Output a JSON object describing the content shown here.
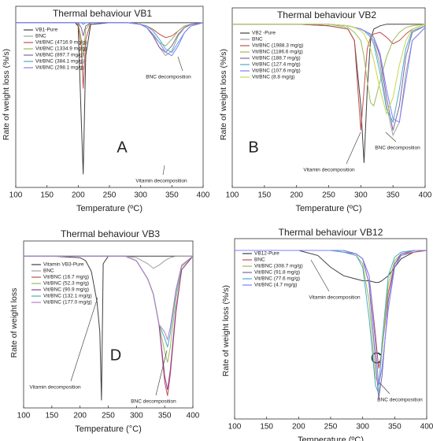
{
  "chart_data": [
    {
      "type": "line",
      "title": "Thermal behaviour VB1",
      "xlabel": "Temperature (ºC)",
      "ylabel": "Rate of weight loss (%/s)",
      "panel_label": "A",
      "xlim": [
        100,
        400
      ],
      "xticks": [
        100,
        150,
        200,
        250,
        300,
        350,
        400
      ],
      "ylim": [
        -100,
        10
      ],
      "annotations": [
        "Vitamin decomposition",
        "BNC decomposition"
      ],
      "x": [
        100,
        150,
        195,
        200,
        205,
        208,
        212,
        220,
        250,
        280,
        300,
        310,
        320,
        330,
        340,
        350,
        360,
        370,
        380,
        400
      ],
      "series": [
        {
          "name": "VB1-Pure",
          "color": "#404040",
          "values": [
            0,
            0,
            0,
            -2,
            -60,
            -92,
            -20,
            -1,
            0,
            0,
            0,
            0,
            0,
            0,
            0,
            0,
            0,
            0,
            0,
            0
          ]
        },
        {
          "name": "BNC",
          "color": "#a0a0a0",
          "values": [
            0,
            0,
            0,
            0,
            0,
            0,
            0,
            0,
            0,
            0,
            -1,
            -3,
            -8,
            -15,
            -20,
            -17,
            -8,
            -3,
            -1,
            0
          ]
        },
        {
          "name": "Vit/BNC (4716.9 mg/g)",
          "color": "#c0504d",
          "values": [
            0,
            0,
            0,
            -1,
            -15,
            -40,
            -10,
            0,
            0,
            0,
            -1,
            -2,
            -4,
            -7,
            -9,
            -8,
            -5,
            -2,
            -1,
            0
          ]
        },
        {
          "name": "Vit/BNC (1334.9 mg/g)",
          "color": "#9bbb59",
          "values": [
            0,
            0,
            0,
            0,
            -10,
            -20,
            -4,
            0,
            0,
            0,
            -1,
            -3,
            -8,
            -12,
            -14,
            -10,
            -5,
            -2,
            -1,
            0
          ]
        },
        {
          "name": "Vit/BNC (897.7 mg/g)",
          "color": "#8064a2",
          "values": [
            0,
            0,
            0,
            0,
            -3,
            -8,
            -2,
            0,
            0,
            0,
            -1,
            -3,
            -8,
            -15,
            -18,
            -14,
            -7,
            -3,
            -1,
            0
          ]
        },
        {
          "name": "Vit/BNC (384.1 mg/g)",
          "color": "#4bacc6",
          "values": [
            0,
            0,
            0,
            0,
            0,
            -1,
            0,
            0,
            0,
            0,
            -1,
            -2,
            -5,
            -10,
            -16,
            -18,
            -12,
            -6,
            -2,
            0
          ]
        },
        {
          "name": "Vit/BNC (298.1 mg/g)",
          "color": "#7f7fff",
          "values": [
            0,
            0,
            0,
            0,
            0,
            0,
            0,
            0,
            0,
            0,
            -1,
            -3,
            -7,
            -12,
            -18,
            -20,
            -14,
            -6,
            -2,
            0
          ]
        }
      ]
    },
    {
      "type": "line",
      "title": "Thermal behaviour VB2",
      "xlabel": "Temperature (ºC)",
      "ylabel": "Rate of weight loss (%/s)",
      "panel_label": "B",
      "xlim": [
        100,
        400
      ],
      "xticks": [
        100,
        150,
        200,
        250,
        300,
        350,
        400
      ],
      "ylim": [
        -100,
        10
      ],
      "annotations": [
        "Vitamin decomposition",
        "BNC decomposition"
      ],
      "x": [
        100,
        150,
        200,
        250,
        280,
        290,
        300,
        305,
        310,
        315,
        320,
        330,
        340,
        350,
        360,
        370,
        380,
        400
      ],
      "series": [
        {
          "name": "VB2 -Pure",
          "color": "#404040",
          "values": [
            0,
            0,
            0,
            -1,
            -3,
            -10,
            -50,
            -85,
            -40,
            -10,
            -3,
            -1,
            0,
            0,
            0,
            0,
            0,
            0
          ]
        },
        {
          "name": "BNC",
          "color": "#a0a0a0",
          "values": [
            0,
            0,
            0,
            0,
            -1,
            -2,
            -3,
            -4,
            -5,
            -7,
            -10,
            -25,
            -50,
            -68,
            -60,
            -30,
            -10,
            -2
          ]
        },
        {
          "name": "Vit/BNC (1988.3 mg/g)",
          "color": "#c0504d",
          "values": [
            0,
            0,
            0,
            -1,
            -3,
            -10,
            -65,
            -40,
            -15,
            -8,
            -6,
            -5,
            -8,
            -12,
            -10,
            -6,
            -3,
            0
          ]
        },
        {
          "name": "Vit/BNC (1186.6 mg/g)",
          "color": "#9bbb59",
          "values": [
            0,
            0,
            0,
            0,
            -2,
            -5,
            -10,
            -20,
            -35,
            -48,
            -50,
            -35,
            -20,
            -10,
            -5,
            -2,
            -1,
            0
          ]
        },
        {
          "name": "Vit/BNC (188.7 mg/g)",
          "color": "#8064a2",
          "values": [
            0,
            0,
            0,
            0,
            -1,
            -2,
            -3,
            -4,
            -5,
            -6,
            -8,
            -20,
            -45,
            -65,
            -50,
            -20,
            -5,
            -1
          ]
        },
        {
          "name": "Vit/BNC (127.4 mg/g)",
          "color": "#4bacc6",
          "values": [
            0,
            0,
            0,
            0,
            -1,
            -2,
            -3,
            -4,
            -6,
            -8,
            -12,
            -30,
            -52,
            -60,
            -40,
            -15,
            -4,
            -1
          ]
        },
        {
          "name": "Vit/BNC (107.6 mg/g)",
          "color": "#7f7fff",
          "values": [
            0,
            0,
            0,
            0,
            -1,
            -2,
            -3,
            -4,
            -5,
            -6,
            -8,
            -18,
            -40,
            -58,
            -60,
            -35,
            -10,
            -2
          ]
        },
        {
          "name": "Vit/BNC (8.8 mg/g)",
          "color": "#c8d84a",
          "values": [
            0,
            0,
            0,
            0,
            -1,
            -2,
            -4,
            -6,
            -10,
            -15,
            -22,
            -40,
            -55,
            -45,
            -25,
            -10,
            -3,
            0
          ]
        }
      ]
    },
    {
      "type": "line",
      "title": "Thermal behaviour VB3",
      "xlabel": "Temperature (°C)",
      "ylabel": "Rate of weight loss",
      "panel_label": "D",
      "xlim": [
        100,
        400
      ],
      "xticks": [
        100,
        150,
        200,
        250,
        300,
        350,
        400
      ],
      "ylim": [
        -100,
        10
      ],
      "annotations": [
        "Vitamin decomposition",
        "BNC decomposition"
      ],
      "x": [
        100,
        150,
        200,
        210,
        220,
        230,
        235,
        238,
        241,
        250,
        280,
        300,
        320,
        330,
        340,
        350,
        355,
        360,
        370,
        380,
        400
      ],
      "series": [
        {
          "name": "Vitamin VB3-Pure",
          "color": "#404040",
          "values": [
            0,
            0,
            -1,
            -3,
            -10,
            -30,
            -50,
            -95,
            -5,
            0,
            0,
            0,
            0,
            0,
            0,
            0,
            0,
            0,
            0,
            0,
            0
          ]
        },
        {
          "name": "BNC",
          "color": "#a0a0a0",
          "values": [
            0,
            0,
            0,
            0,
            0,
            0,
            0,
            0,
            0,
            0,
            0,
            -1,
            -5,
            -8,
            -6,
            -3,
            -2,
            -1,
            0,
            0,
            0
          ]
        },
        {
          "name": "Vit/BNC (16.7 mg/g)",
          "color": "#c0504d",
          "values": [
            0,
            0,
            0,
            0,
            0,
            0,
            0,
            0,
            0,
            0,
            0,
            -3,
            -15,
            -25,
            -45,
            -83,
            -92,
            -78,
            -37,
            -9,
            0
          ]
        },
        {
          "name": "Vit/BNC (52.3 mg/g)",
          "color": "#9bbb59",
          "values": [
            0,
            0,
            0,
            0,
            0,
            0,
            0,
            0,
            0,
            0,
            0,
            -3,
            -15,
            -25,
            -45,
            -63,
            -70,
            -60,
            -28,
            -7,
            0
          ]
        },
        {
          "name": "Vit/BNC (90.9 mg/g)",
          "color": "#8e3f9e",
          "values": [
            0,
            0,
            0,
            0,
            0,
            0,
            0,
            0,
            0,
            0,
            0,
            -3,
            -15,
            -25,
            -45,
            -79,
            -88,
            -75,
            -35,
            -9,
            0
          ]
        },
        {
          "name": "Vit/BNC (132.1 mg/g)",
          "color": "#4bacc6",
          "values": [
            0,
            0,
            0,
            0,
            0,
            0,
            0,
            0,
            0,
            0,
            0,
            -3,
            -15,
            -25,
            -45,
            -54,
            -60,
            -51,
            -24,
            -6,
            0
          ]
        },
        {
          "name": "Vit/BNC (177.0 mg/g)",
          "color": "#b57fc4",
          "values": [
            0,
            0,
            0,
            0,
            0,
            0,
            0,
            0,
            0,
            0,
            0,
            -3,
            -15,
            -25,
            -45,
            -50,
            -55,
            -47,
            -22,
            -6,
            0
          ]
        }
      ]
    },
    {
      "type": "line",
      "title": "Thermal behaviour VB12",
      "xlabel": "Temperature (ºC)",
      "ylabel": "Rate of weight loss (%/s)",
      "panel_label": "C",
      "xlim": [
        100,
        400
      ],
      "xticks": [
        100,
        150,
        200,
        250,
        300,
        350,
        400
      ],
      "ylim": [
        -100,
        7
      ],
      "annotations": [
        "Vitamin decomposition",
        "BNC decomposition"
      ],
      "x": [
        100,
        150,
        200,
        230,
        250,
        270,
        290,
        300,
        310,
        320,
        325,
        330,
        340,
        350,
        360,
        380,
        400
      ],
      "series": [
        {
          "name": "VB12-Pure",
          "color": "#404040",
          "values": [
            0,
            0,
            0,
            -3,
            -10,
            -15,
            -17,
            -18,
            -18,
            -19,
            -19,
            -18,
            -15,
            -10,
            -5,
            -1,
            0
          ]
        },
        {
          "name": "BNC",
          "color": "#c0504d",
          "values": [
            0,
            0,
            0,
            0,
            0,
            0,
            -2,
            -5,
            -15,
            -50,
            -70,
            -60,
            -25,
            -8,
            -3,
            -1,
            0
          ]
        },
        {
          "name": "Vit/BNC (308.7 mg/g)",
          "color": "#9bbb59",
          "values": [
            0,
            0,
            0,
            0,
            0,
            -1,
            -3,
            -8,
            -30,
            -75,
            -80,
            -60,
            -20,
            -6,
            -2,
            0,
            0
          ]
        },
        {
          "name": "Vit/BNC (91.8 mg/g)",
          "color": "#8064a2",
          "values": [
            0,
            0,
            0,
            0,
            0,
            -1,
            -2,
            -5,
            -20,
            -65,
            -88,
            -75,
            -30,
            -8,
            -2,
            0,
            0
          ]
        },
        {
          "name": "Vit/BNC (77.6 mg/g)",
          "color": "#4bacc6",
          "values": [
            0,
            0,
            0,
            0,
            0,
            -1,
            -3,
            -10,
            -40,
            -80,
            -85,
            -55,
            -15,
            -4,
            -1,
            0,
            0
          ]
        },
        {
          "name": "Vit/BNC (4.7 mg/g)",
          "color": "#7f7fff",
          "values": [
            0,
            0,
            0,
            0,
            0,
            0,
            -2,
            -5,
            -15,
            -55,
            -80,
            -70,
            -35,
            -10,
            -3,
            0,
            0
          ]
        }
      ]
    }
  ]
}
